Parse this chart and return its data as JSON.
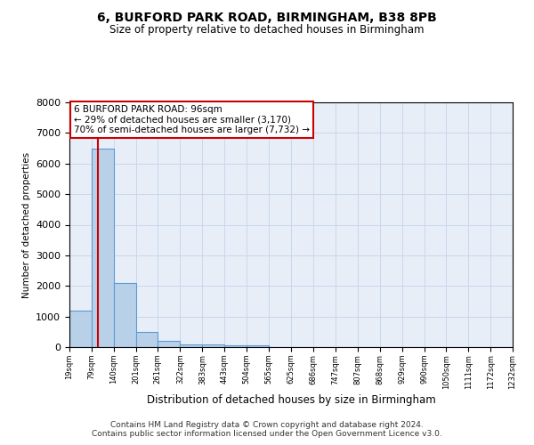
{
  "title": "6, BURFORD PARK ROAD, BIRMINGHAM, B38 8PB",
  "subtitle": "Size of property relative to detached houses in Birmingham",
  "xlabel": "Distribution of detached houses by size in Birmingham",
  "ylabel": "Number of detached properties",
  "bin_edges": [
    19,
    79,
    140,
    201,
    261,
    322,
    383,
    443,
    504,
    565,
    625,
    686,
    747,
    807,
    868,
    929,
    990,
    1050,
    1111,
    1172,
    1232
  ],
  "bar_heights": [
    1200,
    6500,
    2100,
    500,
    200,
    100,
    100,
    50,
    50,
    0,
    0,
    0,
    0,
    0,
    0,
    0,
    0,
    0,
    0,
    0
  ],
  "bar_color": "#b8d0e8",
  "bar_edgecolor": "#5b9bd5",
  "property_size": 96,
  "red_line_color": "#cc0000",
  "ylim": [
    0,
    8000
  ],
  "yticks": [
    0,
    1000,
    2000,
    3000,
    4000,
    5000,
    6000,
    7000,
    8000
  ],
  "annotation_line1": "6 BURFORD PARK ROAD: 96sqm",
  "annotation_line2": "← 29% of detached houses are smaller (3,170)",
  "annotation_line3": "70% of semi-detached houses are larger (7,732) →",
  "annotation_box_color": "#ffffff",
  "annotation_box_edgecolor": "#cc0000",
  "grid_color": "#c8d8ec",
  "background_color": "#e8eef8",
  "footer_line1": "Contains HM Land Registry data © Crown copyright and database right 2024.",
  "footer_line2": "Contains public sector information licensed under the Open Government Licence v3.0."
}
